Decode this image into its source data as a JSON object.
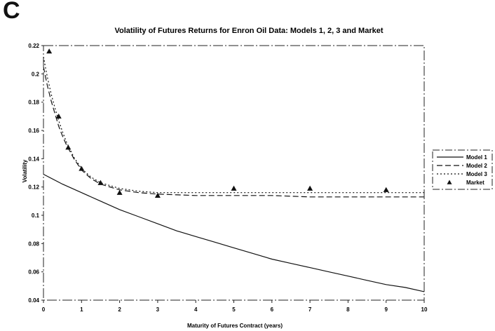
{
  "panel": {
    "letter": "C"
  },
  "chart_data": {
    "type": "line",
    "title": "Volatility of Futures Returns for Enron Oil Data: Models 1, 2, 3 and Market",
    "xlabel": "Maturity of Futures Contract (years)",
    "ylabel": "Volatility",
    "xlim": [
      0,
      10
    ],
    "ylim": [
      0.04,
      0.22
    ],
    "xticks": [
      0,
      1,
      2,
      3,
      4,
      5,
      6,
      7,
      8,
      9,
      10
    ],
    "xtick_labels": [
      "0",
      "1",
      "2",
      "3",
      "4",
      "5",
      "6",
      "7",
      "8",
      "9",
      "10"
    ],
    "yticks": [
      0.04,
      0.06,
      0.08,
      0.1,
      0.12,
      0.14,
      0.16,
      0.18,
      0.2,
      0.22
    ],
    "ytick_labels": [
      "0.04",
      "0.06",
      "0.08",
      "0.1",
      "0.12",
      "0.14",
      "0.16",
      "0.18",
      "0.2",
      "0.22"
    ],
    "grid": false,
    "legend_position": "right",
    "series": [
      {
        "name": "Model 1",
        "style": "solid",
        "color": "#111111",
        "x": [
          0,
          0.5,
          1,
          1.5,
          2,
          2.5,
          3,
          3.5,
          4,
          4.5,
          5,
          5.5,
          6,
          6.5,
          7,
          7.5,
          8,
          8.5,
          9,
          9.5,
          10
        ],
        "y": [
          0.129,
          0.122,
          0.116,
          0.11,
          0.104,
          0.099,
          0.094,
          0.089,
          0.085,
          0.081,
          0.077,
          0.073,
          0.069,
          0.066,
          0.063,
          0.06,
          0.057,
          0.054,
          0.051,
          0.049,
          0.046
        ]
      },
      {
        "name": "Model 2",
        "style": "dashed",
        "color": "#111111",
        "x": [
          0,
          0.1,
          0.2,
          0.3,
          0.4,
          0.5,
          0.6,
          0.8,
          1,
          1.25,
          1.5,
          2,
          2.5,
          3,
          4,
          5,
          6,
          7,
          8,
          9,
          10
        ],
        "y": [
          0.205,
          0.192,
          0.181,
          0.172,
          0.163,
          0.156,
          0.15,
          0.14,
          0.132,
          0.126,
          0.122,
          0.118,
          0.116,
          0.115,
          0.114,
          0.114,
          0.114,
          0.113,
          0.113,
          0.113,
          0.113
        ]
      },
      {
        "name": "Model 3",
        "style": "dotted",
        "color": "#111111",
        "x": [
          0,
          0.1,
          0.2,
          0.3,
          0.4,
          0.5,
          0.6,
          0.8,
          1,
          1.25,
          1.5,
          2,
          2.5,
          3,
          4,
          5,
          6,
          7,
          8,
          9,
          10
        ],
        "y": [
          0.212,
          0.198,
          0.186,
          0.176,
          0.167,
          0.159,
          0.152,
          0.141,
          0.133,
          0.127,
          0.123,
          0.119,
          0.117,
          0.116,
          0.116,
          0.116,
          0.116,
          0.116,
          0.116,
          0.116,
          0.116
        ]
      },
      {
        "name": "Market",
        "style": "markers",
        "marker": "triangle",
        "color": "#111111",
        "x": [
          0.15,
          0.4,
          0.65,
          1,
          1.5,
          2,
          3,
          5,
          7,
          9
        ],
        "y": [
          0.216,
          0.17,
          0.148,
          0.133,
          0.123,
          0.116,
          0.114,
          0.119,
          0.119,
          0.118
        ]
      }
    ]
  }
}
